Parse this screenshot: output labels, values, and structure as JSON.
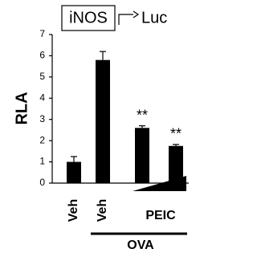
{
  "chart_data": {
    "type": "bar",
    "title": "iNOS",
    "title_target": "Luc",
    "ylabel": "RLA",
    "categories": [
      "Veh",
      "Veh",
      null,
      null
    ],
    "series": [
      {
        "values": [
          1.0,
          5.8,
          2.6,
          1.75
        ],
        "errors": [
          0.25,
          0.4,
          0.1,
          0.07
        ],
        "color": "#000000"
      }
    ],
    "annotations": [
      "**",
      "**"
    ],
    "group_labels": [
      "PEIC",
      "OVA"
    ],
    "ylim": [
      0,
      7
    ],
    "yticks": [
      0,
      1,
      2,
      3,
      4,
      5,
      6,
      7
    ],
    "grid": false
  }
}
